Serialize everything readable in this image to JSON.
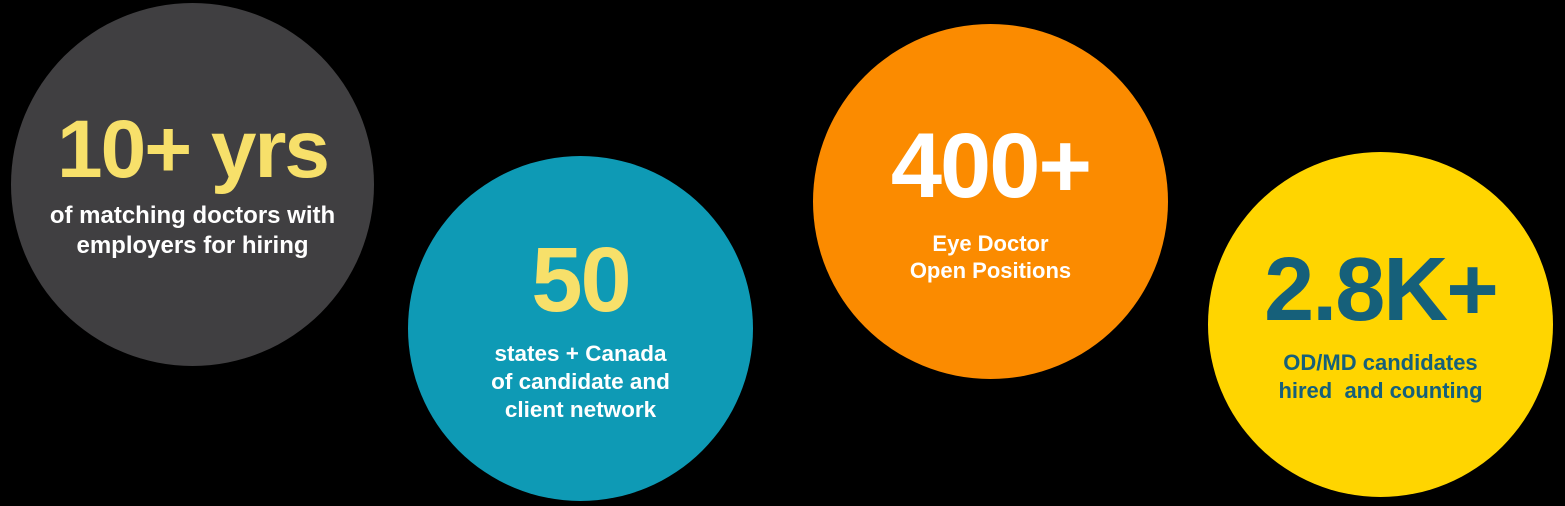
{
  "background_color": "#000000",
  "stats": [
    {
      "id": "years-experience",
      "circle_color": "#403f41",
      "value": "10+ yrs",
      "value_color": "#f7e06a",
      "label": "of matching doctors with\nemployers for hiring",
      "label_color": "#ffffff"
    },
    {
      "id": "states-network",
      "circle_color": "#0e9ab5",
      "value": "50",
      "value_color": "#f7e06a",
      "label": "states + Canada\nof candidate and\nclient network",
      "label_color": "#ffffff"
    },
    {
      "id": "open-positions",
      "circle_color": "#fb8b00",
      "value": "400+",
      "value_color": "#ffffff",
      "label": "Eye Doctor\nOpen Positions",
      "label_color": "#ffffff"
    },
    {
      "id": "candidates-hired",
      "circle_color": "#ffd500",
      "value": "2.8K+",
      "value_color": "#16607a",
      "label": "OD/MD candidates\nhired  and counting",
      "label_color": "#16607a"
    }
  ],
  "chart_data": {
    "type": "table",
    "title": "",
    "categories": [
      "of matching doctors with employers for hiring",
      "states + Canada of candidate and client network",
      "Eye Doctor Open Positions",
      "OD/MD candidates hired  and counting"
    ],
    "value_labels": [
      "10+ yrs",
      "50",
      "400+",
      "2.8K+"
    ],
    "values": [
      10,
      50,
      400,
      2800
    ],
    "units": [
      "years",
      "states",
      "positions",
      "candidates"
    ],
    "legend_position": "none",
    "grid": false
  }
}
